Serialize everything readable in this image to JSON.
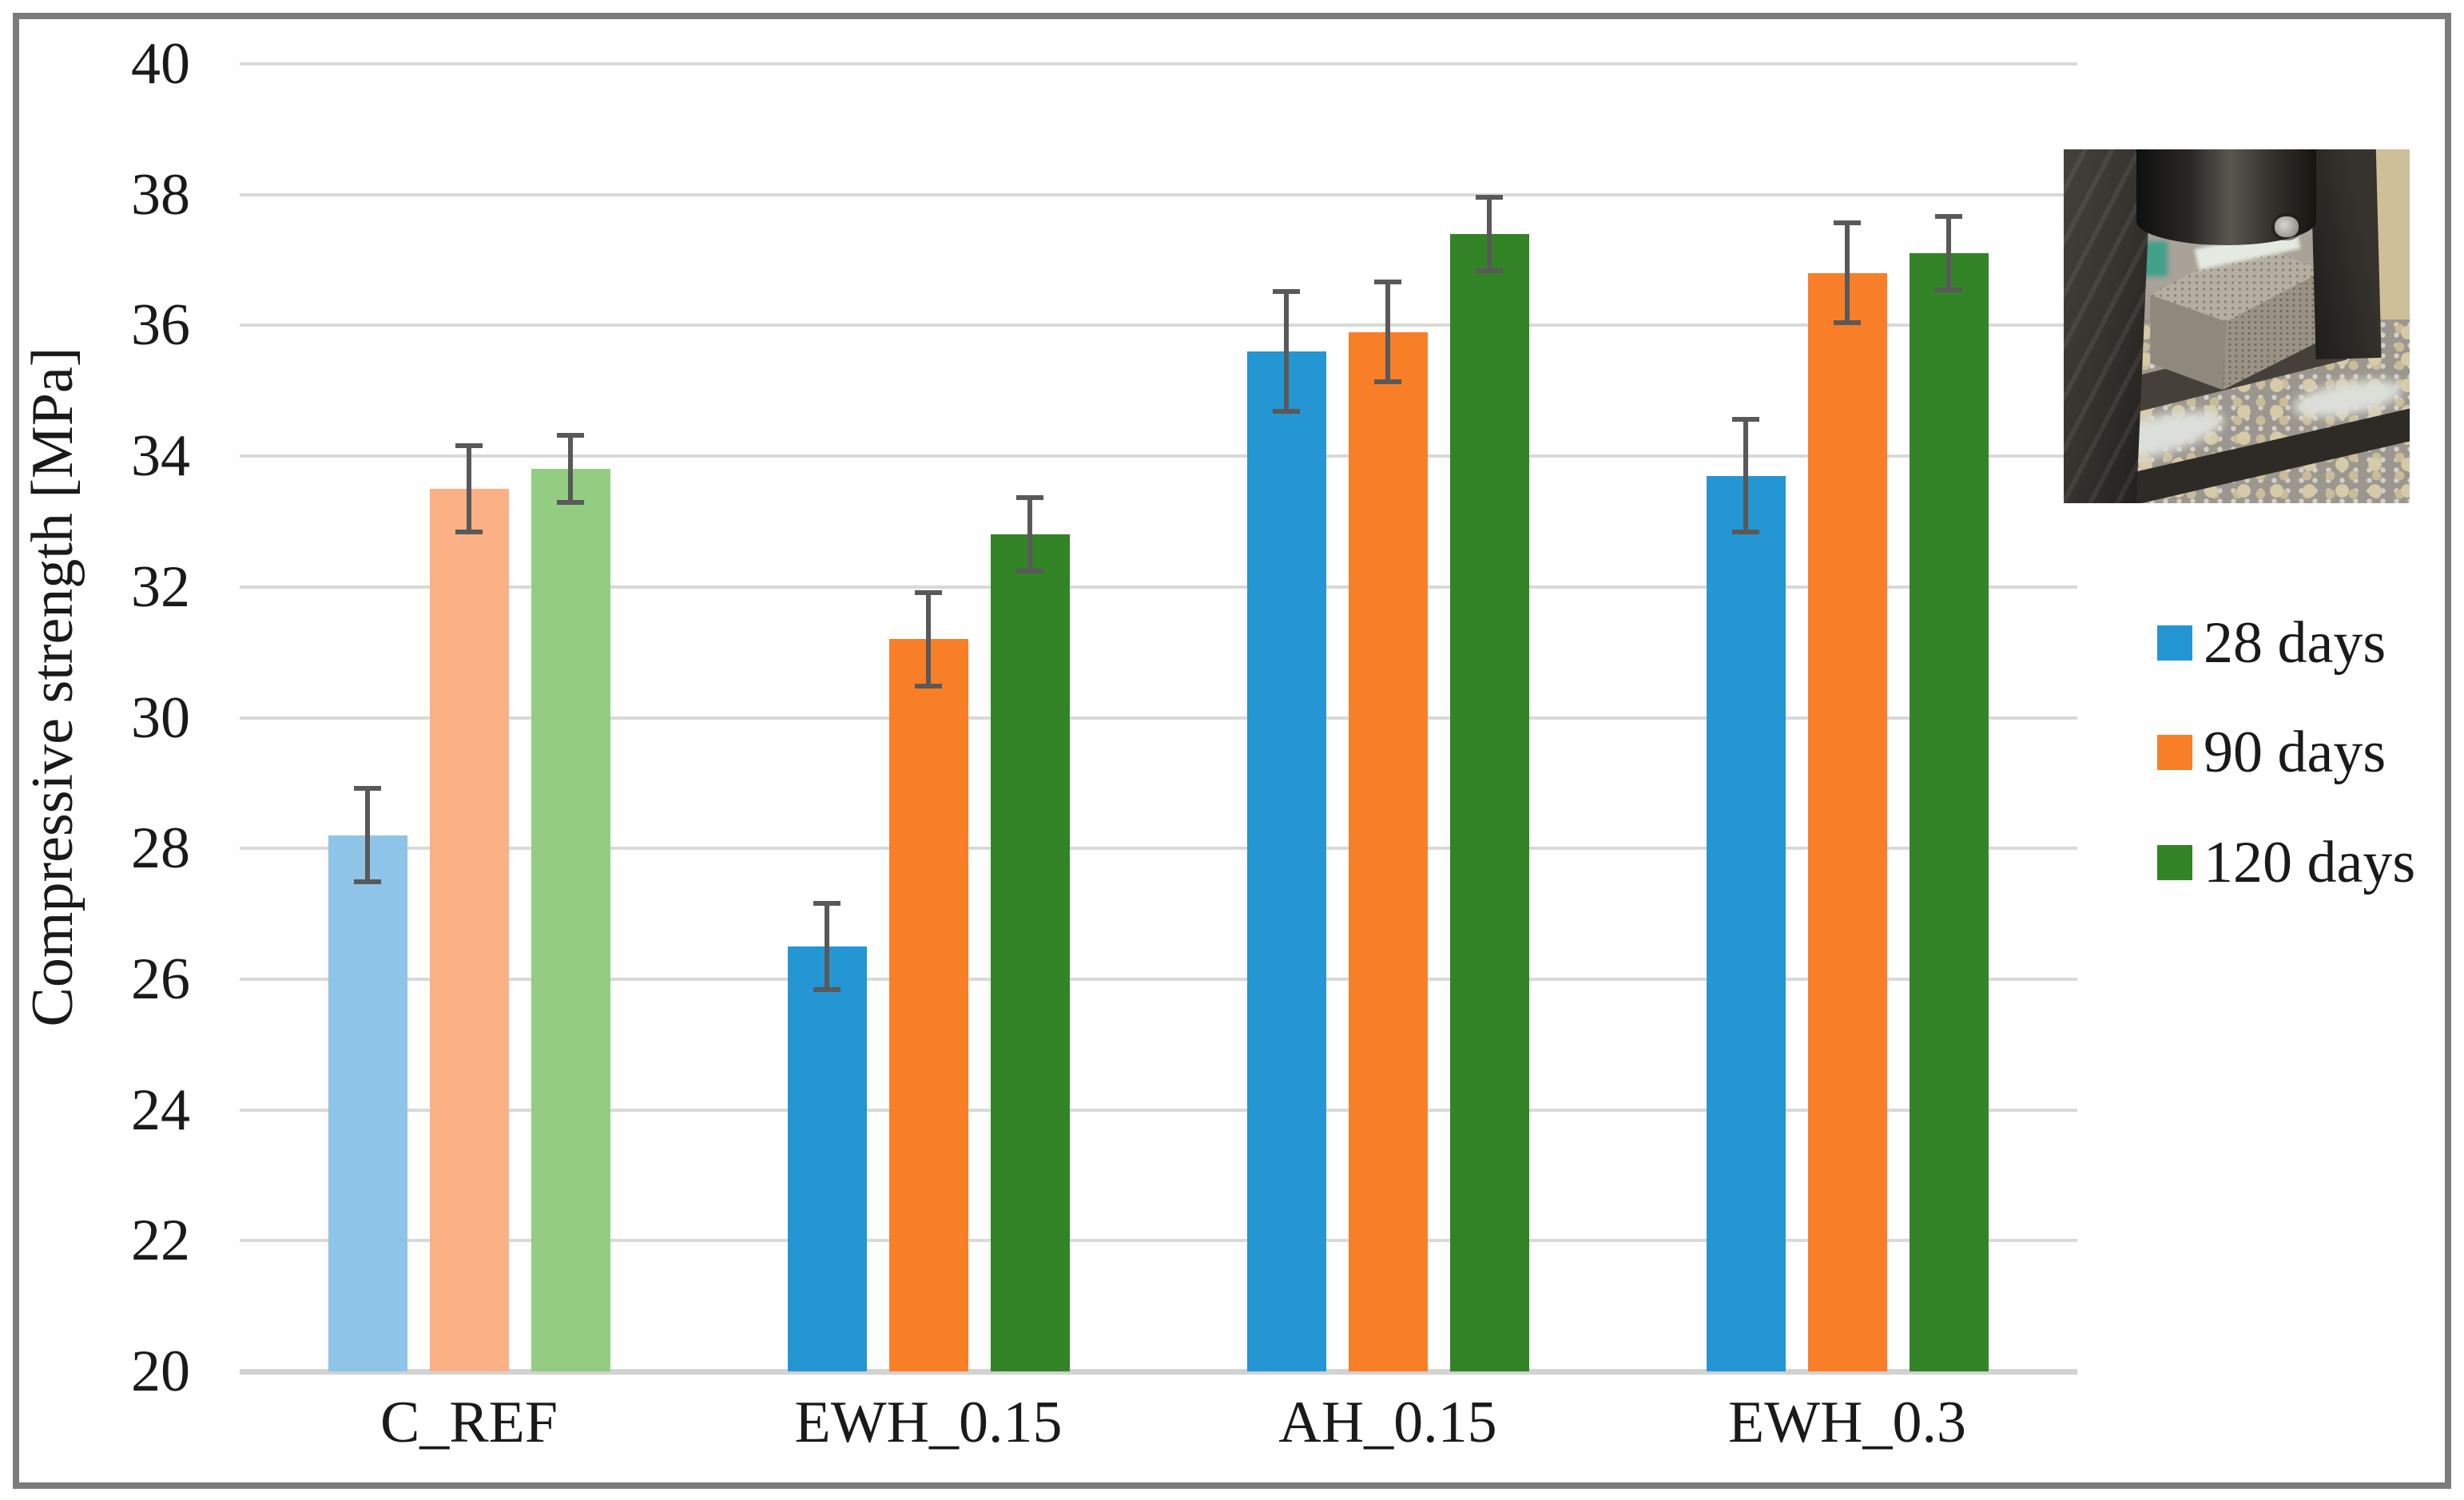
{
  "figure": {
    "border_color": "#7B7B7B",
    "background": "#FFFFFF"
  },
  "chart_data": {
    "type": "bar",
    "title": "",
    "xlabel": "",
    "ylabel": "Compressive strength [MPa]",
    "ylim": [
      20,
      40
    ],
    "yticks": [
      40,
      38,
      36,
      34,
      32,
      30,
      28,
      26,
      24,
      22,
      20
    ],
    "grid": "horizontal gridlines, light gray",
    "legend_position": "right",
    "categories": [
      "C_REF",
      "EWH_0.15",
      "AH_0.15",
      "EWH_0.3"
    ],
    "series": [
      {
        "name": "28 days",
        "color": "#2496D3",
        "light_color": "#8EC4E7",
        "values": [
          28.2,
          26.5,
          35.6,
          33.7
        ],
        "errors": [
          0.75,
          0.7,
          0.95,
          0.9
        ]
      },
      {
        "name": "90 days",
        "color": "#F97E28",
        "light_color": "#FBB183",
        "values": [
          33.5,
          31.2,
          35.9,
          36.8
        ],
        "errors": [
          0.7,
          0.75,
          0.8,
          0.8
        ]
      },
      {
        "name": "120 days",
        "color": "#338427",
        "light_color": "#93CD81",
        "values": [
          33.8,
          32.8,
          37.4,
          37.1
        ],
        "errors": [
          0.55,
          0.6,
          0.6,
          0.6
        ]
      }
    ],
    "first_category_uses_light_shades": true,
    "error_bars": "symmetric, dark gray caps",
    "error_bar_color": "#595959",
    "gridline_color": "#D9D9D9",
    "axis_line_color": "#D2D2D2",
    "text_color": "#1A1A1A"
  },
  "inset_photo": {
    "description": "Photograph of a cube specimen being crushed under the piston of a compression testing machine, wood shavings scattered on the steel base",
    "colors": {
      "wall": "#A8A298",
      "floor": "#9C978E",
      "bg_tan": "#CDBF97",
      "post": "#36322E",
      "edge_dark": "#45403A",
      "edge_dark2": "#2E2B27",
      "powder": "#DCDFD9",
      "dust1": "#D6CAA8",
      "dust2": "#C9BC98",
      "teal": "#43A089",
      "cube_light": "#B5AEA1",
      "cube_mid": "#8F897D",
      "cube_face": "#9A9284",
      "shim": "#E4E9E2"
    }
  }
}
